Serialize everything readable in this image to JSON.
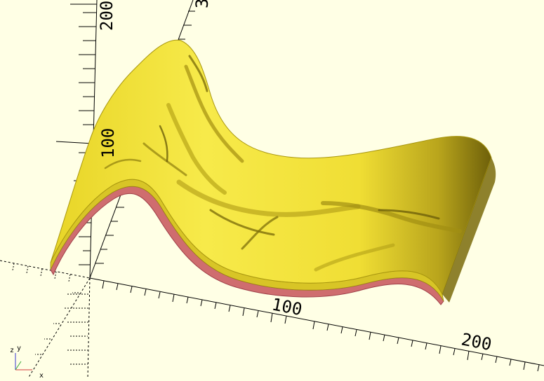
{
  "viewport": {
    "background": "#ffffe5",
    "model_color": "#f2e23a",
    "model_dark_color": "#8a7a10",
    "base_color": "#d9606a",
    "axis_color": "#000000"
  },
  "axis_labels": {
    "x_100": "100",
    "x_200": "200",
    "z_100": "100",
    "z_200": "200",
    "top_partial": "3"
  },
  "gizmo": {
    "x": "x",
    "y": "y",
    "z": "z"
  },
  "icons": [
    "axes-gizmo-icon"
  ]
}
